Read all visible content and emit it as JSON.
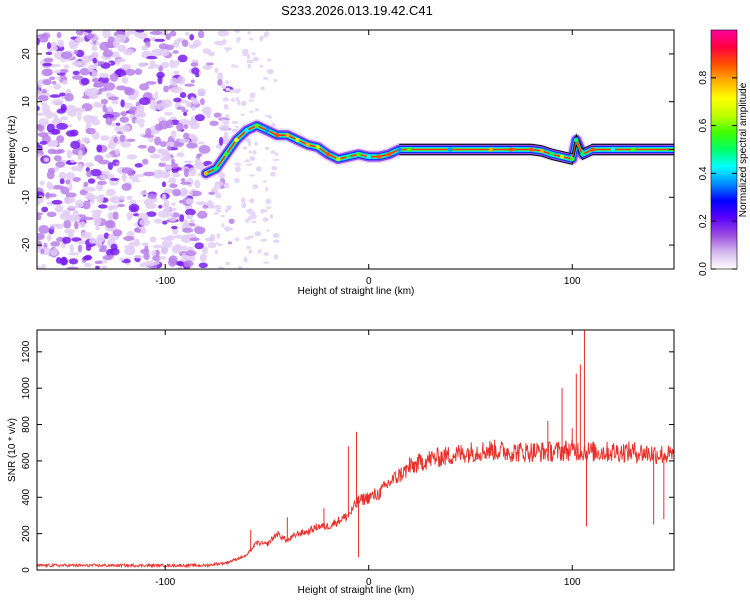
{
  "title": "S233.2026.013.19.42.C41",
  "chart_data": [
    {
      "type": "heatmap",
      "name": "spectrogram",
      "xlabel": "Height of straight line (km)",
      "ylabel": "Frequency (Hz)",
      "xlim": [
        -163,
        150
      ],
      "ylim": [
        -25,
        25
      ],
      "xticks": [
        -100,
        0,
        100
      ],
      "yticks": [
        -20,
        -10,
        0,
        10,
        20
      ],
      "noise_region_x": [
        -163,
        -75
      ],
      "ridge": {
        "x": [
          -80,
          -75,
          -70,
          -65,
          -60,
          -55,
          -50,
          -45,
          -40,
          -35,
          -30,
          -25,
          -20,
          -15,
          -10,
          -5,
          0,
          5,
          10,
          15,
          20,
          40,
          60,
          70,
          80,
          85,
          90,
          95,
          100,
          102,
          105,
          110,
          120,
          130,
          150
        ],
        "y": [
          -5,
          -4,
          -1,
          2,
          4,
          5,
          4,
          3,
          3,
          2,
          1,
          0.5,
          -1,
          -2,
          -1.5,
          -1,
          -1.5,
          -1.5,
          -1,
          0,
          0,
          0,
          0,
          0,
          0,
          -0.3,
          -1,
          -1.5,
          -2,
          2,
          -1,
          0,
          0,
          0,
          0
        ]
      },
      "colorbar": {
        "label": "Normalized spectral amplitude",
        "range": [
          0,
          1
        ],
        "ticks": [
          "0.0",
          "0.2",
          "0.4",
          "0.6",
          "0.8"
        ],
        "tick_values": [
          0,
          0.2,
          0.4,
          0.6,
          0.8
        ],
        "stops": [
          "#ffffff",
          "#d6b8f0",
          "#9a4ce0",
          "#5a00ff",
          "#0000ff",
          "#0090ff",
          "#00ffff",
          "#00ff66",
          "#40ff00",
          "#c0ff00",
          "#ffff00",
          "#ffb000",
          "#ff5000",
          "#ff0040",
          "#ff00a0"
        ]
      }
    },
    {
      "type": "line",
      "name": "snr",
      "xlabel": "Height of straight line (km)",
      "ylabel": "SNR (10 * v/v)",
      "xlim": [
        -163,
        150
      ],
      "ylim": [
        0,
        1320
      ],
      "xticks": [
        -100,
        0,
        100
      ],
      "yticks": [
        0,
        200,
        400,
        600,
        800,
        1000,
        1200
      ],
      "color": "#e8302a",
      "x": [
        -163,
        -140,
        -120,
        -100,
        -80,
        -70,
        -60,
        -55,
        -50,
        -45,
        -40,
        -35,
        -30,
        -25,
        -20,
        -15,
        -10,
        -5,
        0,
        5,
        10,
        15,
        20,
        25,
        30,
        40,
        50,
        60,
        70,
        80,
        90,
        100,
        110,
        120,
        130,
        140,
        150
      ],
      "y": [
        25,
        25,
        25,
        25,
        25,
        40,
        80,
        150,
        140,
        200,
        160,
        200,
        210,
        240,
        240,
        270,
        300,
        380,
        400,
        420,
        480,
        520,
        560,
        590,
        610,
        630,
        650,
        660,
        650,
        650,
        650,
        660,
        650,
        650,
        650,
        640,
        630
      ],
      "spikes": [
        {
          "x": -58,
          "y": 220
        },
        {
          "x": -40,
          "y": 290
        },
        {
          "x": -22,
          "y": 340
        },
        {
          "x": -10,
          "y": 680
        },
        {
          "x": -6,
          "y": 760
        },
        {
          "x": -5,
          "y": 70
        },
        {
          "x": 20,
          "y": 620
        },
        {
          "x": 88,
          "y": 820
        },
        {
          "x": 95,
          "y": 1000
        },
        {
          "x": 100,
          "y": 780
        },
        {
          "x": 102,
          "y": 1080
        },
        {
          "x": 104,
          "y": 1130
        },
        {
          "x": 106,
          "y": 1330
        },
        {
          "x": 107,
          "y": 240
        },
        {
          "x": 140,
          "y": 250
        },
        {
          "x": 145,
          "y": 280
        }
      ]
    }
  ]
}
